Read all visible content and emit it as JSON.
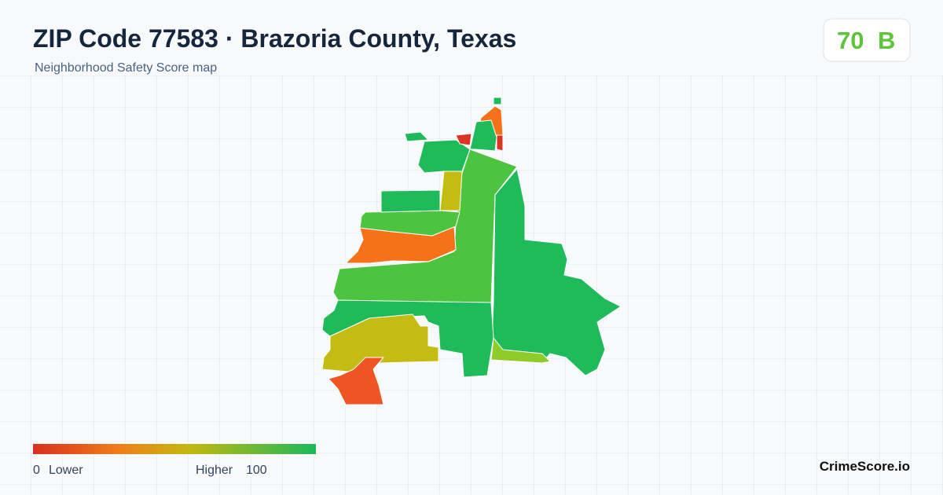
{
  "header": {
    "title": "ZIP Code 77583 · Brazoria County, Texas",
    "subtitle": "Neighborhood Safety Score map",
    "score": 70,
    "grade": "B"
  },
  "legend": {
    "min": 0,
    "low_label": "Lower",
    "high_label": "Higher",
    "max": 100
  },
  "footer": {
    "brand": "CrimeScore.io"
  }
}
